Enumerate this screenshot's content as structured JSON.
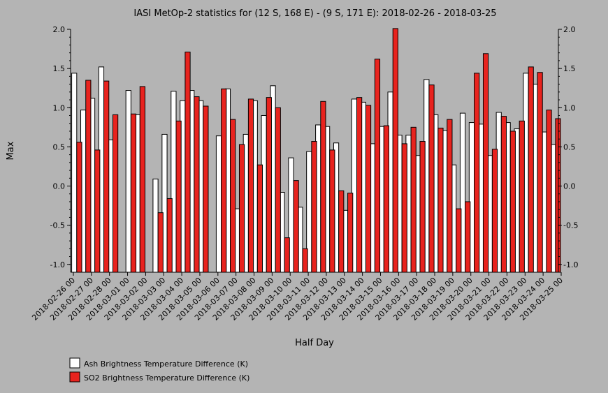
{
  "chart_data": {
    "type": "bar",
    "title": "IASI MetOp-2 statistics for (12 S, 168 E) - (9 S, 171 E): 2018-02-26 - 2018-03-25",
    "xlabel": "Half Day",
    "ylabel": "Max",
    "ylim": [
      -1.1,
      2.0
    ],
    "yticks": [
      -1.0,
      -0.5,
      0.0,
      0.5,
      1.0,
      1.5,
      2.0
    ],
    "ytick_labels": [
      "-1.0",
      "-0.5",
      "0.0",
      "0.5",
      "1.0",
      "1.5",
      "2.0"
    ],
    "grid": false,
    "legend_position": "bottom-left",
    "x_tick_labels": [
      "2018-02-26 00",
      "2018-02-27 00",
      "2018-02-28 00",
      "2018-03-01 00",
      "2018-03-02 00",
      "2018-03-03 00",
      "2018-03-04 00",
      "2018-03-05 00",
      "2018-03-06 00",
      "2018-03-07 00",
      "2018-03-08 00",
      "2018-03-09 00",
      "2018-03-10 00",
      "2018-03-11 00",
      "2018-03-12 00",
      "2018-03-13 00",
      "2018-03-14 00",
      "2018-03-15 00",
      "2018-03-16 00",
      "2018-03-17 00",
      "2018-03-18 00",
      "2018-03-19 00",
      "2018-03-20 00",
      "2018-03-21 00",
      "2018-03-22 00",
      "2018-03-23 00",
      "2018-03-24 00",
      "2018-03-25 00"
    ],
    "series": [
      {
        "name": "Ash Brightness Temperature Difference (K)",
        "color": "#ffffff",
        "values": [
          1.44,
          0.97,
          1.12,
          1.52,
          0.59,
          null,
          1.22,
          0.91,
          null,
          0.09,
          0.66,
          1.21,
          1.09,
          1.22,
          1.09,
          null,
          0.64,
          1.24,
          -0.29,
          0.66,
          1.09,
          0.9,
          1.28,
          -0.08,
          0.36,
          -0.27,
          0.44,
          0.78,
          0.76,
          0.55,
          -0.31,
          1.11,
          1.07,
          0.54,
          0.76,
          1.2,
          0.65,
          0.65,
          0.39,
          1.36,
          0.91,
          0.71,
          0.27,
          0.93,
          0.81,
          0.79,
          0.39,
          0.94,
          0.81,
          0.73,
          1.44,
          1.3,
          0.69,
          0.53
        ]
      },
      {
        "name": "SO2 Brightness Temperature Difference (K)",
        "color": "#e8231e",
        "values": [
          0.56,
          1.35,
          0.46,
          1.34,
          0.91,
          null,
          0.92,
          1.27,
          null,
          -0.34,
          -0.16,
          0.83,
          1.71,
          1.14,
          1.02,
          null,
          1.24,
          0.85,
          0.53,
          1.11,
          0.27,
          1.13,
          1.0,
          -0.66,
          0.07,
          -0.8,
          0.57,
          1.08,
          0.46,
          -0.06,
          -0.09,
          1.13,
          1.03,
          1.62,
          0.77,
          2.01,
          0.54,
          0.75,
          0.57,
          1.29,
          0.74,
          0.85,
          -0.29,
          -0.2,
          1.44,
          1.69,
          0.47,
          0.89,
          0.7,
          0.83,
          1.52,
          1.45,
          0.97,
          0.86
        ]
      }
    ]
  }
}
